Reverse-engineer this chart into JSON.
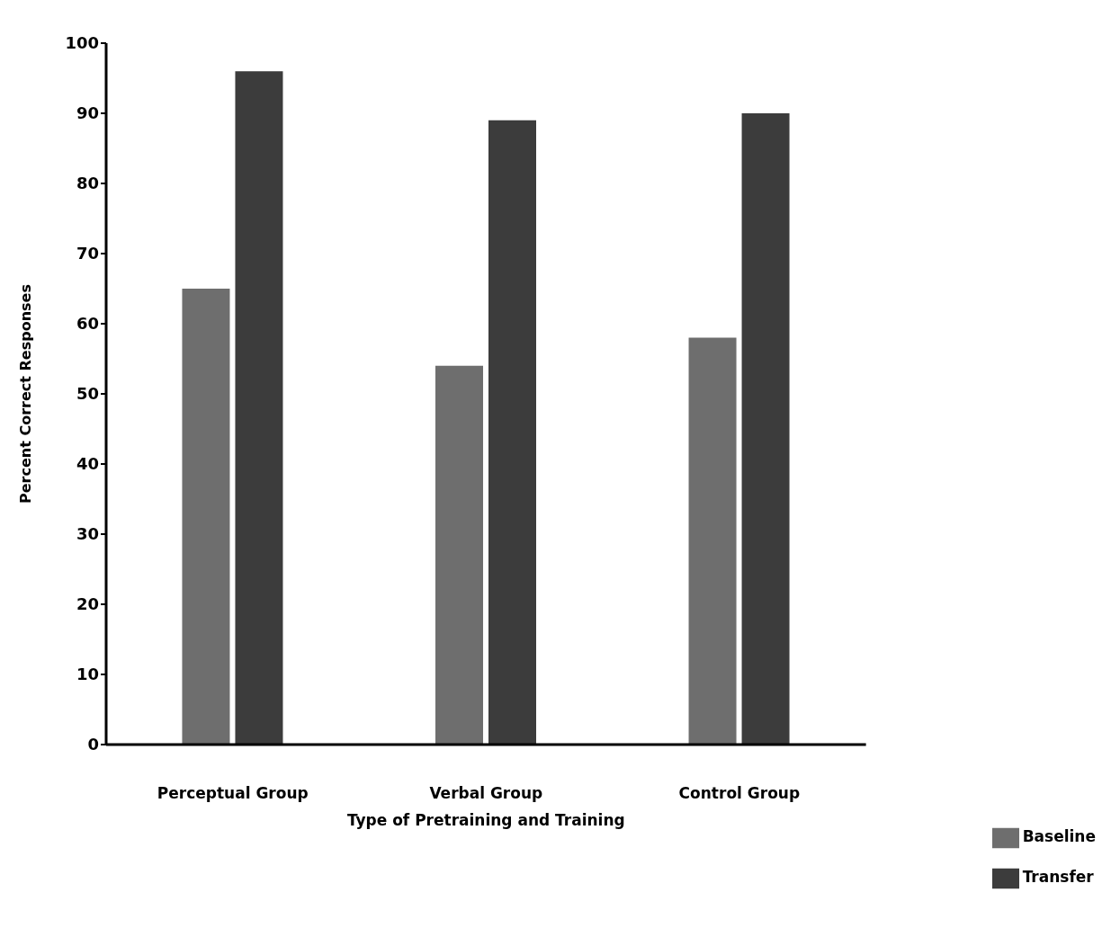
{
  "chart_data": {
    "type": "bar",
    "xlabel": "Type of Pretraining and Training",
    "ylabel": "Percent Correct Responses",
    "categories": [
      "Perceptual Group",
      "Verbal Group",
      "Control Group"
    ],
    "series": [
      {
        "name": "Baseline",
        "color": "#6e6e6e",
        "values": [
          65,
          54,
          58
        ]
      },
      {
        "name": "Transfer",
        "color": "#3c3c3c",
        "values": [
          96,
          89,
          90
        ]
      }
    ],
    "ylim": [
      0,
      100
    ],
    "yticks": [
      0,
      10,
      20,
      30,
      40,
      50,
      60,
      70,
      80,
      90,
      100
    ],
    "grid": false,
    "legend": "bottom right"
  }
}
